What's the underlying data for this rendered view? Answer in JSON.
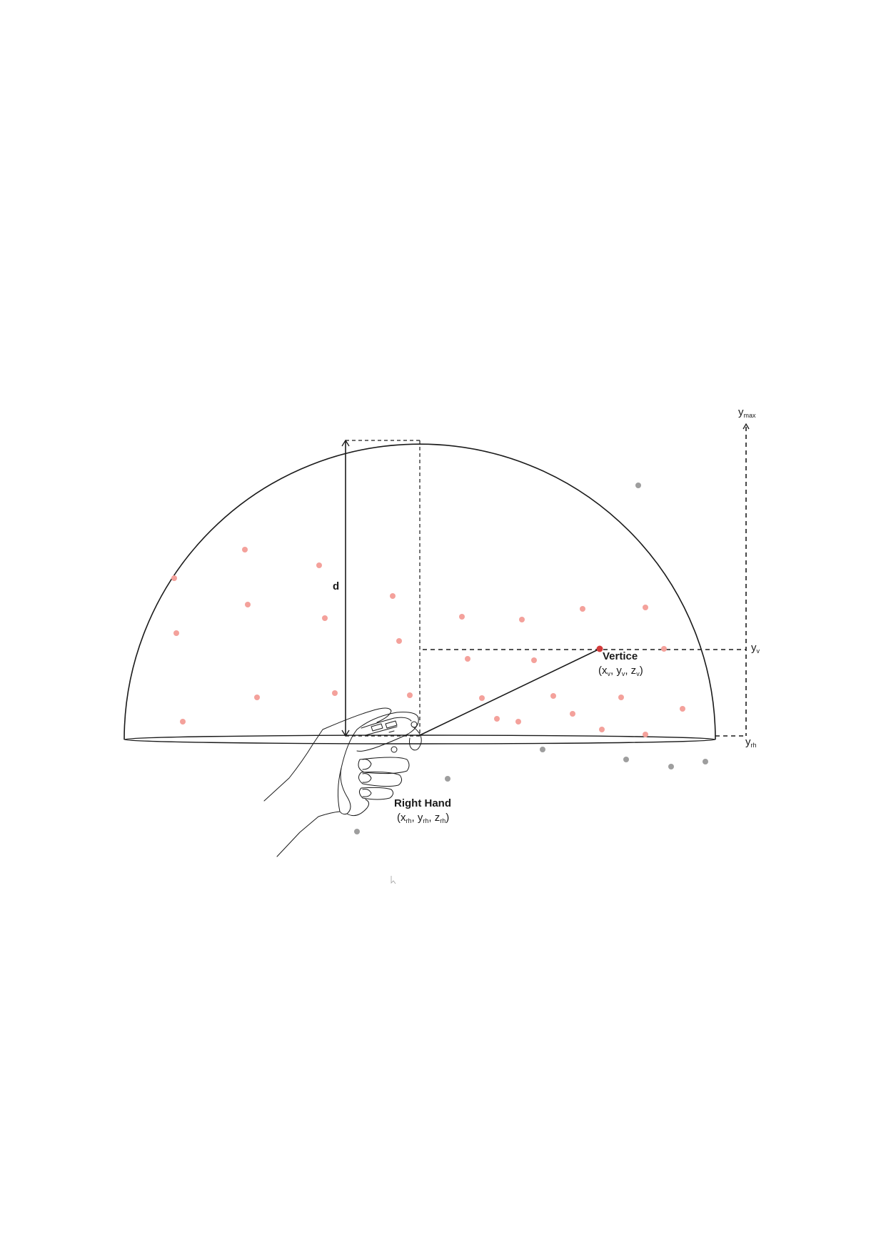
{
  "labels": {
    "d": "d",
    "vertice_title": "Vertice",
    "vertice_coords": {
      "open": "(x",
      "s1": "v",
      "c1": ", y",
      "s2": "v",
      "c2": ", z",
      "s3": "v",
      "close": ")"
    },
    "hand_title": "Right Hand",
    "hand_coords": {
      "open": "(x",
      "s1": "rh",
      "c1": ", y",
      "s2": "rh",
      "c2": ", z",
      "s3": "rh",
      "close": ")"
    },
    "ymax": {
      "base": "y",
      "sub": "max"
    },
    "yv": {
      "base": "y",
      "sub": "v"
    },
    "yrh": {
      "base": "y",
      "sub": "rh"
    }
  },
  "colors": {
    "stroke": "#1a1a1a",
    "inside_point": "#f4a19b",
    "outside_point": "#9e9e9e",
    "vertex_point": "#d23a3a"
  },
  "icons": [
    "hand-with-controller-icon"
  ]
}
